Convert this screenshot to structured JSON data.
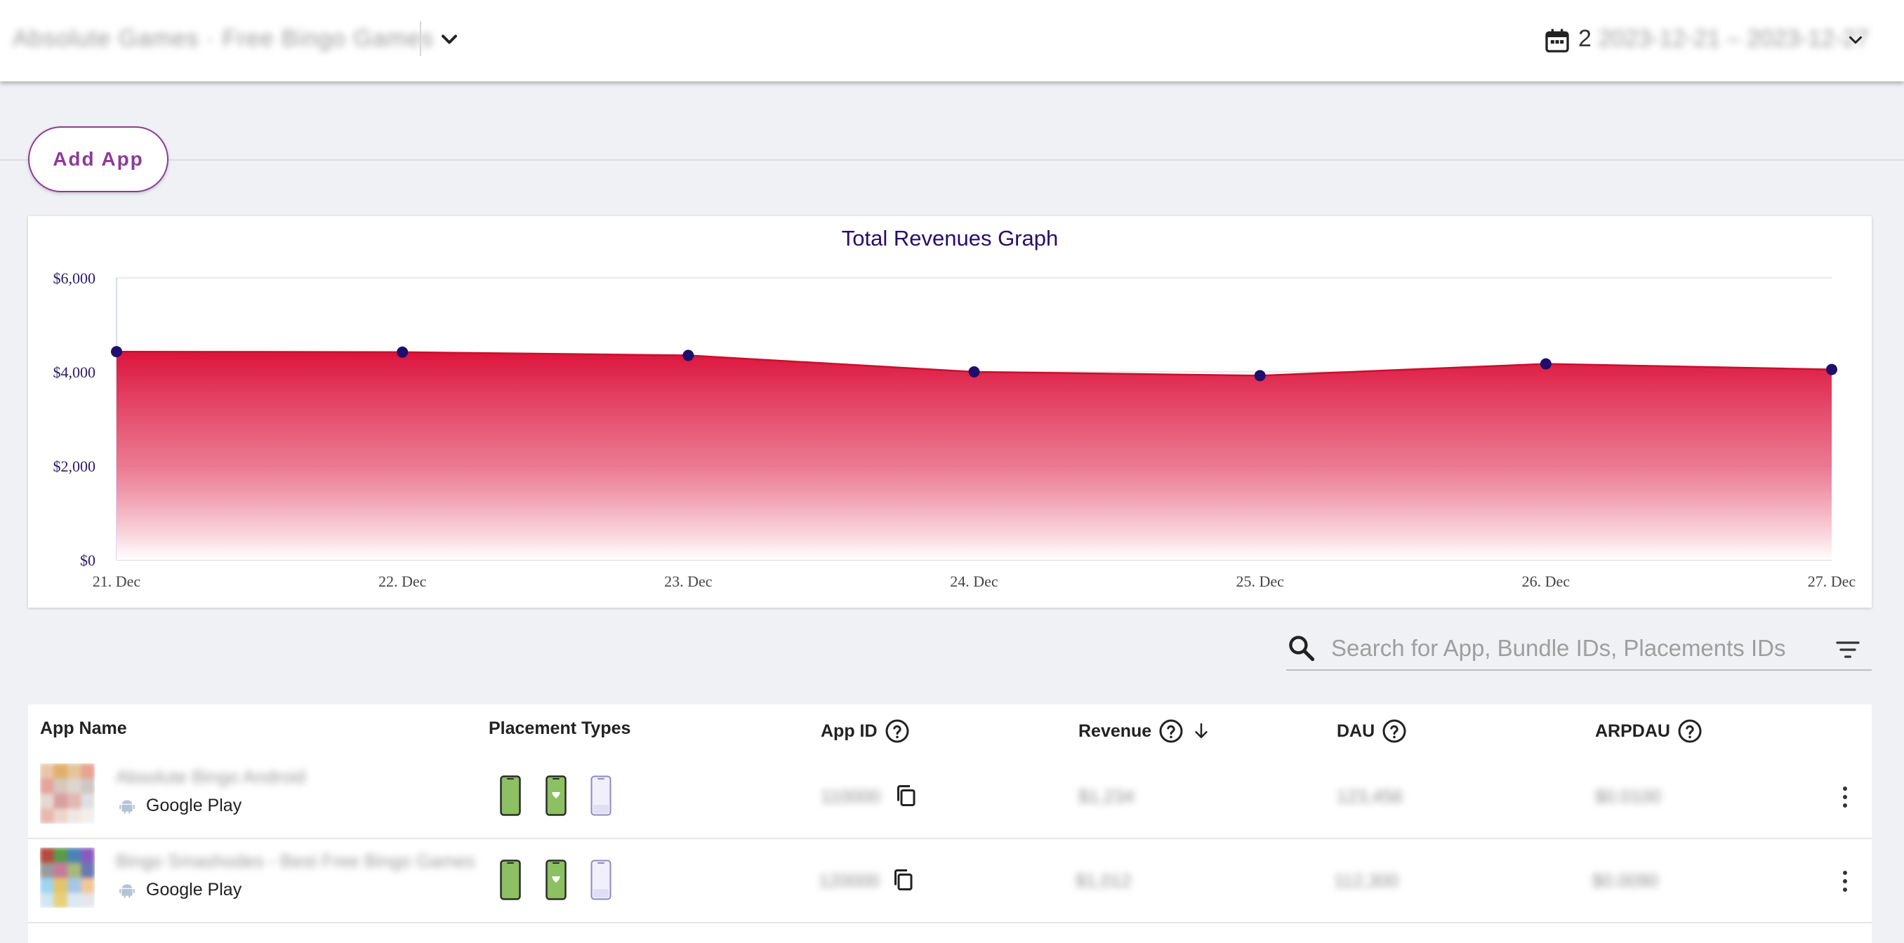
{
  "header": {
    "org_name": "Absolute Games · Free Bingo Games",
    "date_prefix": "2",
    "date_range": "2023-12-21 – 2023-12-27"
  },
  "toolbar": {
    "add_app_label": "Add App"
  },
  "chart_data": {
    "type": "area",
    "title": "Total Revenues Graph",
    "categories": [
      "21. Dec",
      "22. Dec",
      "23. Dec",
      "24. Dec",
      "25. Dec",
      "26. Dec",
      "27. Dec"
    ],
    "series": [
      {
        "values": [
          4430,
          4420,
          4350,
          4000,
          3920,
          4170,
          4050
        ]
      }
    ],
    "yticks": [
      "$0",
      "$2,000",
      "$4,000",
      "$6,000"
    ],
    "ylim": [
      0,
      6000
    ],
    "grid": true,
    "colors": {
      "fill_top": "#dc143c",
      "line": "#c8102e",
      "marker": "#1f0e6b",
      "title": "#2b0b6b",
      "tick": "#2b1a6b"
    }
  },
  "search": {
    "placeholder": "Search for App, Bundle IDs, Placements IDs"
  },
  "table": {
    "columns": {
      "app_name": "App Name",
      "placement_types": "Placement Types",
      "app_id": "App ID",
      "revenue": "Revenue",
      "dau": "DAU",
      "arpdau": "ARPDAU"
    },
    "rows": [
      {
        "name": "Absolute Bingo Android",
        "store": "Google Play",
        "app_id": "110000",
        "revenue": "$1,234",
        "dau": "123,456",
        "arpdau": "$0.0100"
      },
      {
        "name": "Bingo Smashodes - Best Free Bingo Games",
        "store": "Google Play",
        "app_id": "120000",
        "revenue": "$1,012",
        "dau": "112,300",
        "arpdau": "$0.0090"
      }
    ]
  },
  "colors": {
    "accent": "#8c3b98",
    "phone_green": "#8cc063",
    "phone_lilac": "#e8e6f7"
  }
}
